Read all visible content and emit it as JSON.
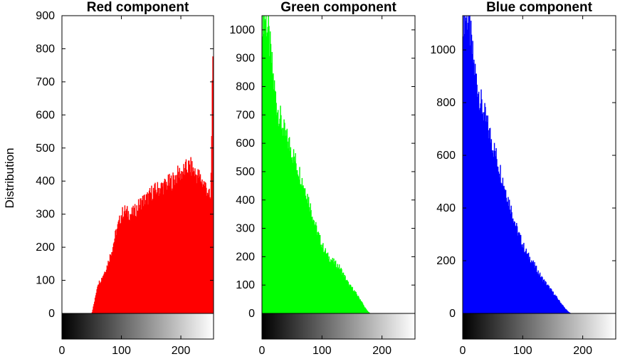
{
  "figure": {
    "ylabel": "Distribution"
  },
  "chart_data": [
    {
      "type": "bar",
      "title": "Red component",
      "color": "#ff0000",
      "ylabel": "Distribution",
      "xlim": [
        0,
        255
      ],
      "ylim": [
        0,
        900
      ],
      "yticks": [
        0,
        100,
        200,
        300,
        400,
        500,
        600,
        700,
        800,
        900
      ],
      "xticks": [
        0,
        100,
        200
      ],
      "x": [
        50,
        55,
        60,
        65,
        70,
        75,
        80,
        85,
        90,
        95,
        100,
        105,
        110,
        115,
        120,
        125,
        130,
        135,
        140,
        145,
        150,
        155,
        160,
        165,
        170,
        175,
        180,
        185,
        190,
        195,
        200,
        205,
        210,
        215,
        220,
        225,
        230,
        235,
        240,
        245,
        250,
        254
      ],
      "values": [
        0,
        40,
        90,
        100,
        120,
        140,
        170,
        200,
        240,
        270,
        300,
        310,
        305,
        300,
        305,
        315,
        330,
        340,
        345,
        350,
        365,
        370,
        375,
        380,
        385,
        390,
        395,
        400,
        410,
        420,
        425,
        430,
        440,
        445,
        435,
        420,
        415,
        400,
        390,
        370,
        340,
        900
      ]
    },
    {
      "type": "bar",
      "title": "Green component",
      "color": "#00ff00",
      "xlim": [
        0,
        255
      ],
      "ylim": [
        0,
        1050
      ],
      "yticks": [
        0,
        100,
        200,
        300,
        400,
        500,
        600,
        700,
        800,
        900,
        1000
      ],
      "xticks": [
        0,
        100,
        200
      ],
      "x": [
        0,
        5,
        10,
        15,
        20,
        25,
        30,
        35,
        40,
        45,
        50,
        55,
        60,
        65,
        70,
        75,
        80,
        85,
        90,
        95,
        100,
        105,
        110,
        115,
        120,
        125,
        130,
        135,
        140,
        145,
        150,
        155,
        160,
        165,
        170,
        175,
        180
      ],
      "values": [
        1050,
        1050,
        1000,
        900,
        800,
        730,
        690,
        650,
        620,
        600,
        570,
        540,
        510,
        480,
        450,
        420,
        380,
        340,
        300,
        270,
        240,
        220,
        200,
        190,
        180,
        170,
        160,
        140,
        120,
        100,
        90,
        75,
        60,
        45,
        25,
        10,
        0
      ]
    },
    {
      "type": "bar",
      "title": "Blue component",
      "color": "#0000ff",
      "xlim": [
        0,
        255
      ],
      "ylim": [
        0,
        1130
      ],
      "yticks": [
        0,
        200,
        400,
        600,
        800,
        1000
      ],
      "xticks": [
        0,
        100,
        200
      ],
      "x": [
        0,
        5,
        10,
        15,
        20,
        25,
        30,
        35,
        40,
        45,
        50,
        55,
        60,
        65,
        70,
        75,
        80,
        85,
        90,
        95,
        100,
        105,
        110,
        115,
        120,
        125,
        130,
        135,
        140,
        145,
        150,
        155,
        160,
        165,
        170,
        175,
        180
      ],
      "values": [
        1130,
        1130,
        1130,
        1000,
        920,
        860,
        800,
        760,
        720,
        680,
        640,
        600,
        560,
        520,
        480,
        440,
        400,
        360,
        320,
        290,
        260,
        235,
        215,
        200,
        180,
        160,
        140,
        125,
        110,
        95,
        80,
        65,
        50,
        35,
        20,
        8,
        0
      ]
    }
  ]
}
